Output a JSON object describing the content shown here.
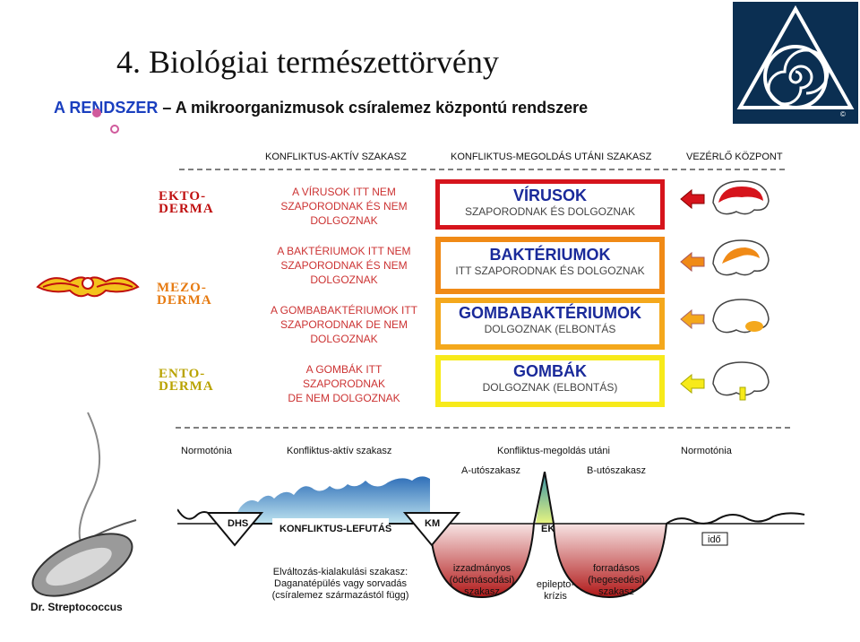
{
  "header": {
    "title": "4. Biológiai természettörvény",
    "subtitle_highlight": "A RENDSZER",
    "subtitle_rest": " – A mikroorganizmusok csíralemez központú rendszere"
  },
  "columns": {
    "active": "KONFLIKTUS-AKTÍV SZAKASZ",
    "resolved": "KONFLIKTUS-MEGOLDÁS UTÁNI SZAKASZ",
    "control": "VEZÉRLŐ KÖZPONT"
  },
  "germ_layers": {
    "ekto": [
      "EKTO-",
      "DERMA"
    ],
    "mezo": [
      "MEZO-",
      "DERMA"
    ],
    "ento": [
      "ENTO-",
      "DERMA"
    ]
  },
  "rows": [
    {
      "active": [
        "A VÍRUSOK ITT NEM",
        "SZAPORODNAK ÉS NEM",
        "DOLGOZNAK"
      ],
      "big": "VÍRUSOK",
      "box_line": "SZAPORODNAK ÉS DOLGOZNAK",
      "color": "#d6141c"
    },
    {
      "active": [
        "A BAKTÉRIUMOK ITT NEM",
        "SZAPORODNAK ÉS NEM",
        "DOLGOZNAK"
      ],
      "big": "BAKTÉRIUMOK",
      "box_line": "ITT SZAPORODNAK ÉS DOLGOZNAK",
      "color": "#f08a16"
    },
    {
      "active": [
        "A GOMBABAKTÉRIUMOK ITT",
        "SZAPORODNAK DE NEM",
        "DOLGOZNAK"
      ],
      "big": "GOMBABAKTÉRIUMOK",
      "box_line": "DOLGOZNAK (ELBONTÁS",
      "color": "#f4a81c"
    },
    {
      "active": [
        "A GOMBÁK ITT",
        "SZAPORODNAK",
        "DE NEM DOLGOZNAK"
      ],
      "big": "GOMBÁK",
      "box_line": "DOLGOZNAK (ELBONTÁS)",
      "color": "#f7ea1a"
    }
  ],
  "phases": {
    "norm_left": "Normotónia",
    "active": "Konfliktus-aktív szakasz",
    "resolved": "Konfliktus-megoldás utáni",
    "norm_right": "Normotónia",
    "a_phase": "A-utószakasz",
    "b_phase": "B-utószakasz"
  },
  "curve_labels": {
    "dhs": "DHS",
    "konf": "KONFLIKTUS-LEFUTÁS",
    "km": "KM",
    "ek": "EK",
    "ido": "idő"
  },
  "descriptions": {
    "left": [
      "Elváltozás-kialakulási szakasz:",
      "Daganatépülés vagy sorvadás",
      "(csíralemez származástól függ)"
    ],
    "a_pit": [
      "izzadmányos",
      "(ödémásodási)",
      "szakasz"
    ],
    "epi": [
      "epilepto-",
      "krízis"
    ],
    "b_pit": [
      "forradásos",
      "(hegesedési)",
      "szakasz"
    ]
  },
  "footer": {
    "caption": "Dr. Streptococcus"
  }
}
